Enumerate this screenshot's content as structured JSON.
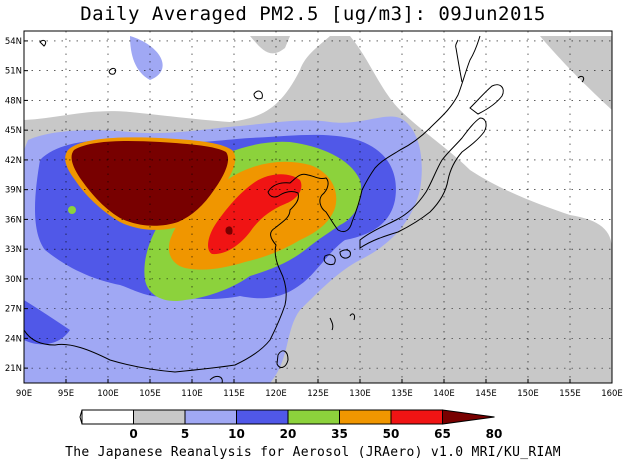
{
  "title": "Daily Averaged PM2.5 [ug/m3]: 09Jun2015",
  "footer": "The Japanese Reanalysis for Aerosol (JRAero) v1.0 MRI/KU_RIAM",
  "map": {
    "lon_range": [
      90,
      160
    ],
    "lat_range": [
      19.5,
      55
    ],
    "lon_ticks": [
      {
        "lon": 90,
        "label": "90E"
      },
      {
        "lon": 95,
        "label": "95E"
      },
      {
        "lon": 100,
        "label": "100E"
      },
      {
        "lon": 105,
        "label": "105E"
      },
      {
        "lon": 110,
        "label": "110E"
      },
      {
        "lon": 115,
        "label": "115E"
      },
      {
        "lon": 120,
        "label": "120E"
      },
      {
        "lon": 125,
        "label": "125E"
      },
      {
        "lon": 130,
        "label": "130E"
      },
      {
        "lon": 135,
        "label": "135E"
      },
      {
        "lon": 140,
        "label": "140E"
      },
      {
        "lon": 145,
        "label": "145E"
      },
      {
        "lon": 150,
        "label": "150E"
      },
      {
        "lon": 155,
        "label": "155E"
      },
      {
        "lon": 160,
        "label": "160E"
      }
    ],
    "lat_ticks": [
      {
        "lat": 21,
        "label": "21N"
      },
      {
        "lat": 24,
        "label": "24N"
      },
      {
        "lat": 27,
        "label": "27N"
      },
      {
        "lat": 30,
        "label": "30N"
      },
      {
        "lat": 33,
        "label": "33N"
      },
      {
        "lat": 36,
        "label": "36N"
      },
      {
        "lat": 39,
        "label": "39N"
      },
      {
        "lat": 42,
        "label": "42N"
      },
      {
        "lat": 45,
        "label": "45N"
      },
      {
        "lat": 48,
        "label": "48N"
      },
      {
        "lat": 51,
        "label": "51N"
      },
      {
        "lat": 54,
        "label": "54N"
      }
    ],
    "gridlines": "dotted"
  },
  "colorbar": {
    "levels": [
      "0",
      "5",
      "10",
      "20",
      "35",
      "50",
      "65",
      "80"
    ],
    "colors": [
      "#ffffff",
      "#ffffff",
      "#c8c8c8",
      "#a0a8f4",
      "#5058e8",
      "#8cd23c",
      "#f09600",
      "#f01414",
      "#780000"
    ]
  },
  "colors": {
    "c5_10": "#c8c8c8",
    "c10_20": "#a0a8f4",
    "c20_35": "#5058e8",
    "c35_50": "#8cd23c",
    "c50_65": "#f09600",
    "c65_80": "#f01414",
    "c80": "#780000"
  }
}
